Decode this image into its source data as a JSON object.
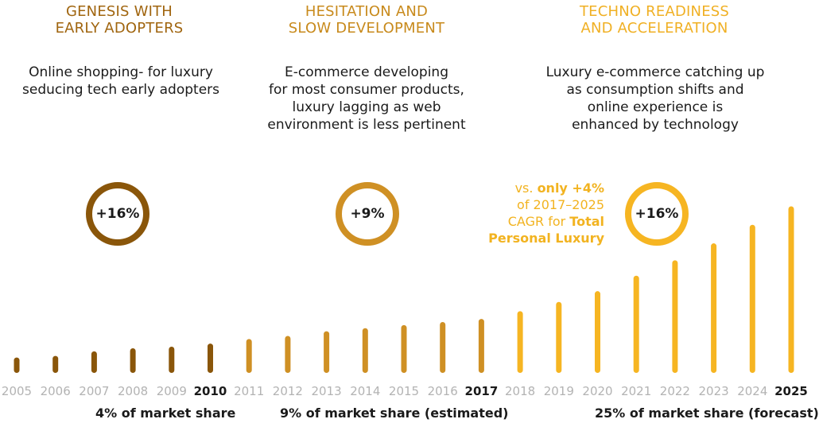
{
  "phases": [
    {
      "title_lines": [
        "GENESIS WITH",
        "EARLY ADOPTERS"
      ],
      "title_color": "#a0650f",
      "desc_lines": [
        "Online shopping- for luxury",
        "seducing tech early adopters"
      ],
      "cagr": "+16%",
      "circle_color": "#8a560a",
      "share": "4% of market share"
    },
    {
      "title_lines": [
        "HESITATION AND",
        "SLOW DEVELOPMENT"
      ],
      "title_color": "#c88a1c",
      "desc_lines": [
        "E-commerce developing",
        "for most consumer products,",
        "luxury lagging as web",
        "environment is less pertinent"
      ],
      "cagr": "+9%",
      "circle_color": "#cf9024",
      "share": "9% of market share (estimated)"
    },
    {
      "title_lines": [
        "TECHNO READINESS",
        "AND ACCELERATION"
      ],
      "title_color": "#f0b024",
      "desc_lines": [
        "Luxury e-commerce catching up",
        "as consumption shifts and",
        "online experience is",
        "enhanced by technology"
      ],
      "cagr": "+16%",
      "circle_color": "#f6b522",
      "share": "25% of market share (forecast)"
    }
  ],
  "note": {
    "line1_prefix": "vs. ",
    "line1_bold": "only +4%",
    "line2": "of 2017–2025",
    "line3_prefix": "CAGR for ",
    "line3_bold": "Total",
    "line4_bold": "Personal Luxury"
  },
  "chart_data": {
    "type": "bar",
    "categories": [
      "2005",
      "2006",
      "2007",
      "2008",
      "2009",
      "2010",
      "2011",
      "2012",
      "2013",
      "2014",
      "2015",
      "2016",
      "2017",
      "2018",
      "2019",
      "2020",
      "2021",
      "2022",
      "2023",
      "2024",
      "2025"
    ],
    "values": [
      1.0,
      1.1,
      1.4,
      1.6,
      1.7,
      1.9,
      2.2,
      2.4,
      2.7,
      2.9,
      3.1,
      3.3,
      3.5,
      4.0,
      4.6,
      5.3,
      6.3,
      7.3,
      8.4,
      9.6,
      10.8
    ],
    "highlight_categories": [
      "2010",
      "2017",
      "2025"
    ],
    "phase_colors": [
      "#8a560a",
      "#cf9024",
      "#f6b522"
    ],
    "tick_color": "#b3b3b3"
  }
}
